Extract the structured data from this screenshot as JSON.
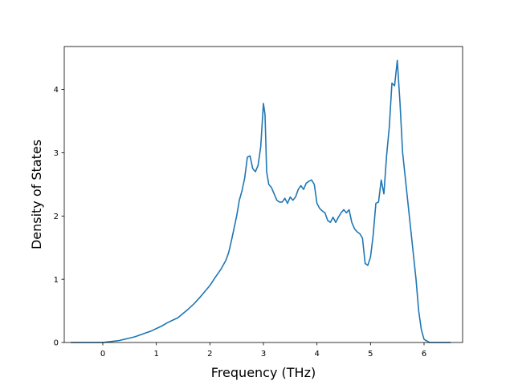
{
  "chart_data": {
    "type": "line",
    "title": "",
    "xlabel": "Frequency (THz)",
    "ylabel": "Density of States",
    "xlim": [
      -0.72,
      6.72
    ],
    "ylim": [
      0,
      4.68
    ],
    "xticks": [
      0,
      1,
      2,
      3,
      4,
      5,
      6
    ],
    "yticks": [
      0,
      1,
      2,
      3,
      4
    ],
    "grid": false,
    "legend": "none",
    "colors": {
      "line": "#1f77b4",
      "axes": "#000000",
      "background": "#ffffff"
    },
    "series": [
      {
        "x": [
          -0.6,
          -0.4,
          -0.2,
          0.0,
          0.1,
          0.2,
          0.3,
          0.4,
          0.5,
          0.6,
          0.7,
          0.8,
          0.9,
          1.0,
          1.1,
          1.2,
          1.3,
          1.4,
          1.5,
          1.6,
          1.7,
          1.8,
          1.9,
          2.0,
          2.1,
          2.2,
          2.3,
          2.35,
          2.4,
          2.45,
          2.5,
          2.55,
          2.6,
          2.65,
          2.7,
          2.75,
          2.8,
          2.85,
          2.9,
          2.95,
          3.0,
          3.03,
          3.06,
          3.1,
          3.15,
          3.2,
          3.25,
          3.3,
          3.35,
          3.4,
          3.45,
          3.5,
          3.55,
          3.6,
          3.65,
          3.7,
          3.75,
          3.8,
          3.85,
          3.9,
          3.95,
          4.0,
          4.05,
          4.1,
          4.15,
          4.2,
          4.25,
          4.3,
          4.35,
          4.4,
          4.45,
          4.5,
          4.55,
          4.6,
          4.65,
          4.7,
          4.75,
          4.8,
          4.85,
          4.9,
          4.95,
          5.0,
          5.05,
          5.1,
          5.15,
          5.2,
          5.25,
          5.3,
          5.35,
          5.4,
          5.45,
          5.5,
          5.55,
          5.6,
          5.65,
          5.7,
          5.75,
          5.8,
          5.85,
          5.9,
          5.95,
          6.0,
          6.1,
          6.2,
          6.3,
          6.4,
          6.5
        ],
        "y": [
          0.0,
          0.0,
          0.0,
          0.0,
          0.01,
          0.02,
          0.03,
          0.05,
          0.07,
          0.09,
          0.12,
          0.15,
          0.18,
          0.22,
          0.26,
          0.31,
          0.35,
          0.39,
          0.46,
          0.53,
          0.61,
          0.7,
          0.8,
          0.9,
          1.03,
          1.15,
          1.3,
          1.42,
          1.6,
          1.8,
          2.0,
          2.25,
          2.4,
          2.6,
          2.93,
          2.95,
          2.75,
          2.7,
          2.8,
          3.1,
          3.78,
          3.6,
          2.7,
          2.5,
          2.45,
          2.35,
          2.25,
          2.22,
          2.22,
          2.28,
          2.2,
          2.3,
          2.25,
          2.3,
          2.42,
          2.48,
          2.42,
          2.52,
          2.55,
          2.57,
          2.5,
          2.2,
          2.12,
          2.08,
          2.05,
          1.93,
          1.9,
          1.98,
          1.9,
          1.98,
          2.05,
          2.1,
          2.05,
          2.1,
          1.9,
          1.8,
          1.75,
          1.72,
          1.65,
          1.25,
          1.22,
          1.35,
          1.7,
          2.2,
          2.22,
          2.57,
          2.35,
          2.95,
          3.4,
          4.1,
          4.06,
          4.46,
          3.8,
          3.0,
          2.6,
          2.2,
          1.8,
          1.4,
          1.0,
          0.5,
          0.2,
          0.05,
          0.0,
          0.0,
          0.0,
          0.0,
          0.0
        ]
      }
    ]
  }
}
